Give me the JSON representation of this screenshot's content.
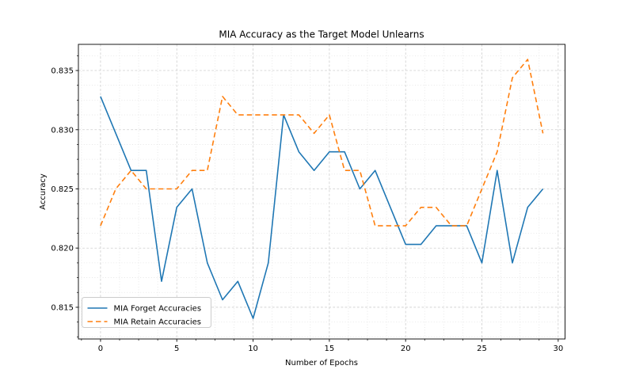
{
  "figure": {
    "title": "MIA Accuracy as the Target Model Unlearns",
    "xlabel": "Number of Epochs",
    "ylabel": "Accuracy"
  },
  "chart_data": {
    "type": "line",
    "title": "MIA Accuracy as the Target Model Unlearns",
    "xlabel": "Number of Epochs",
    "ylabel": "Accuracy",
    "x": [
      0,
      1,
      2,
      3,
      4,
      5,
      6,
      7,
      8,
      9,
      10,
      11,
      12,
      13,
      14,
      15,
      16,
      17,
      18,
      19,
      20,
      21,
      22,
      23,
      24,
      25,
      26,
      27,
      28,
      29
    ],
    "series": [
      {
        "name": "MIA Forget Accuracies",
        "color": "#1f77b4",
        "style": "solid",
        "values": [
          0.83281,
          0.82969,
          0.82656,
          0.82656,
          0.81719,
          0.82344,
          0.825,
          0.81875,
          0.81563,
          0.81719,
          0.81406,
          0.81875,
          0.83125,
          0.82813,
          0.82656,
          0.82813,
          0.82813,
          0.825,
          0.82656,
          0.82344,
          0.82031,
          0.82031,
          0.82188,
          0.82188,
          0.82188,
          0.81875,
          0.82656,
          0.81875,
          0.82344,
          0.825
        ]
      },
      {
        "name": "MIA Retain Accuracies",
        "color": "#ff7f0e",
        "style": "dashed",
        "values": [
          0.82188,
          0.825,
          0.82656,
          0.825,
          0.825,
          0.825,
          0.82656,
          0.82656,
          0.83281,
          0.83125,
          0.83125,
          0.83125,
          0.83125,
          0.83125,
          0.82969,
          0.83125,
          0.82656,
          0.82656,
          0.82188,
          0.82188,
          0.82188,
          0.82344,
          0.82344,
          0.82188,
          0.82188,
          0.825,
          0.82813,
          0.83438,
          0.83594,
          0.82969
        ]
      }
    ],
    "xticks": [
      0,
      5,
      10,
      15,
      20,
      25,
      30
    ],
    "yticks": [
      0.815,
      0.82,
      0.825,
      0.83,
      0.835
    ],
    "xtick_labels": [
      "0",
      "5",
      "10",
      "15",
      "20",
      "25",
      "30"
    ],
    "ytick_labels": [
      "0.815",
      "0.820",
      "0.825",
      "0.830",
      "0.835"
    ],
    "xlim": [
      -1.45,
      30.45
    ],
    "ylim": [
      0.81232,
      0.83721
    ],
    "minor_x_step": 1.25,
    "minor_y_step": 0.00125,
    "grid": true,
    "legend_position": "lower left",
    "colors": {
      "forget_line": "#1f77b4",
      "retain_line": "#ff7f0e",
      "grid_major": "#cdcdcd",
      "grid_minor": "#e3e3e3",
      "spine": "#1a1a1a",
      "legend_border": "#cccccc"
    }
  }
}
